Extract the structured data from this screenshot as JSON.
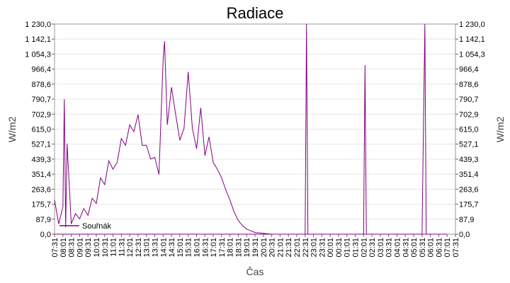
{
  "chart_data": {
    "type": "line",
    "title": "Radiace",
    "xlabel": "Čas",
    "ylabel": "W/m2",
    "ylim": [
      0,
      1230
    ],
    "y_ticks": [
      "0,0",
      "87,9",
      "175,7",
      "263,6",
      "351,4",
      "439,3",
      "527,1",
      "615,0",
      "702,9",
      "790,7",
      "878,6",
      "966,4",
      "1 054,3",
      "1 142,1",
      "1 230,0"
    ],
    "x_ticks": [
      "07:31",
      "08:01",
      "08:31",
      "09:01",
      "09:31",
      "10:01",
      "10:31",
      "11:01",
      "11:31",
      "12:01",
      "12:31",
      "13:01",
      "13:31",
      "14:01",
      "14:31",
      "15:01",
      "15:31",
      "16:01",
      "16:31",
      "17:01",
      "17:31",
      "18:01",
      "18:31",
      "19:01",
      "19:31",
      "20:01",
      "20:31",
      "21:01",
      "21:31",
      "22:01",
      "22:31",
      "23:01",
      "23:31",
      "00:01",
      "00:31",
      "01:01",
      "01:31",
      "02:01",
      "02:31",
      "03:01",
      "03:31",
      "04:01",
      "04:31",
      "05:01",
      "05:31",
      "06:01",
      "06:31",
      "07:01",
      "07:31"
    ],
    "grid": true,
    "legend": "bottom-left",
    "series": [
      {
        "name": "Souřnák",
        "color": "#800080",
        "points": [
          [
            "07:31",
            200
          ],
          [
            "07:46",
            60
          ],
          [
            "08:01",
            160
          ],
          [
            "08:06",
            790
          ],
          [
            "08:11",
            40
          ],
          [
            "08:16",
            530
          ],
          [
            "08:31",
            60
          ],
          [
            "08:46",
            120
          ],
          [
            "09:01",
            90
          ],
          [
            "09:16",
            150
          ],
          [
            "09:31",
            110
          ],
          [
            "09:46",
            210
          ],
          [
            "10:01",
            180
          ],
          [
            "10:16",
            330
          ],
          [
            "10:31",
            290
          ],
          [
            "10:46",
            430
          ],
          [
            "11:01",
            380
          ],
          [
            "11:16",
            420
          ],
          [
            "11:31",
            560
          ],
          [
            "11:46",
            520
          ],
          [
            "12:01",
            640
          ],
          [
            "12:16",
            600
          ],
          [
            "12:31",
            700
          ],
          [
            "12:46",
            520
          ],
          [
            "13:01",
            520
          ],
          [
            "13:16",
            440
          ],
          [
            "13:31",
            450
          ],
          [
            "13:46",
            350
          ],
          [
            "14:01",
            1020
          ],
          [
            "14:06",
            1130
          ],
          [
            "14:16",
            640
          ],
          [
            "14:31",
            860
          ],
          [
            "14:46",
            700
          ],
          [
            "15:01",
            550
          ],
          [
            "15:16",
            620
          ],
          [
            "15:31",
            950
          ],
          [
            "15:46",
            620
          ],
          [
            "16:01",
            500
          ],
          [
            "16:16",
            740
          ],
          [
            "16:31",
            460
          ],
          [
            "16:46",
            570
          ],
          [
            "17:01",
            420
          ],
          [
            "17:16",
            380
          ],
          [
            "17:31",
            330
          ],
          [
            "17:46",
            260
          ],
          [
            "18:01",
            200
          ],
          [
            "18:16",
            130
          ],
          [
            "18:31",
            80
          ],
          [
            "18:46",
            50
          ],
          [
            "19:01",
            30
          ],
          [
            "19:16",
            20
          ],
          [
            "19:31",
            10
          ],
          [
            "20:01",
            5
          ],
          [
            "20:31",
            0
          ],
          [
            "21:01",
            0
          ],
          [
            "21:31",
            0
          ],
          [
            "22:01",
            0
          ],
          [
            "22:31",
            0
          ],
          [
            "22:36",
            1230
          ],
          [
            "22:41",
            0
          ],
          [
            "23:01",
            0
          ],
          [
            "23:31",
            0
          ],
          [
            "00:01",
            0
          ],
          [
            "00:31",
            0
          ],
          [
            "01:01",
            0
          ],
          [
            "01:31",
            0
          ],
          [
            "02:01",
            0
          ],
          [
            "02:06",
            990
          ],
          [
            "02:11",
            0
          ],
          [
            "02:31",
            0
          ],
          [
            "03:01",
            0
          ],
          [
            "03:31",
            0
          ],
          [
            "04:01",
            0
          ],
          [
            "04:31",
            0
          ],
          [
            "05:01",
            0
          ],
          [
            "05:31",
            0
          ],
          [
            "05:41",
            1230
          ],
          [
            "05:46",
            0
          ],
          [
            "06:01",
            0
          ],
          [
            "06:31",
            0
          ],
          [
            "07:01",
            0
          ],
          [
            "07:31",
            0
          ]
        ]
      }
    ]
  }
}
